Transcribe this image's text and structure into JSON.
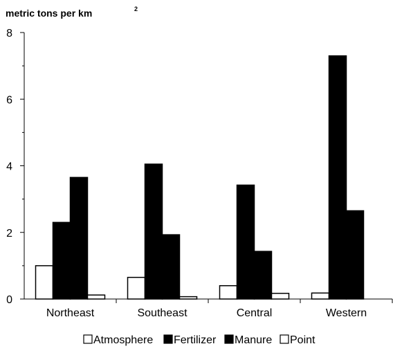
{
  "chart_data": {
    "type": "bar",
    "ylabel": "metric tons per km",
    "ylabel_superscript": "2",
    "categories": [
      "Northeast",
      "Southeast",
      "Central",
      "Western"
    ],
    "series": [
      {
        "name": "Atmosphere",
        "color": "#ffffff",
        "values": [
          1.0,
          0.65,
          0.4,
          0.18
        ]
      },
      {
        "name": "Fertilizer",
        "color": "#000000",
        "values": [
          2.3,
          4.05,
          3.42,
          7.3
        ]
      },
      {
        "name": "Manure",
        "color": "#000000",
        "values": [
          3.65,
          1.93,
          1.43,
          2.65
        ]
      },
      {
        "name": "Point",
        "color": "#ffffff",
        "values": [
          0.12,
          0.07,
          0.17,
          0.0
        ]
      }
    ],
    "ylim": [
      0,
      8
    ],
    "yticks": [
      "0",
      "2",
      "4",
      "6",
      "8"
    ],
    "legend": [
      "Atmosphere",
      "Fertilizer",
      "Manure",
      "Point"
    ],
    "legend_position": "bottom",
    "grid": false
  }
}
